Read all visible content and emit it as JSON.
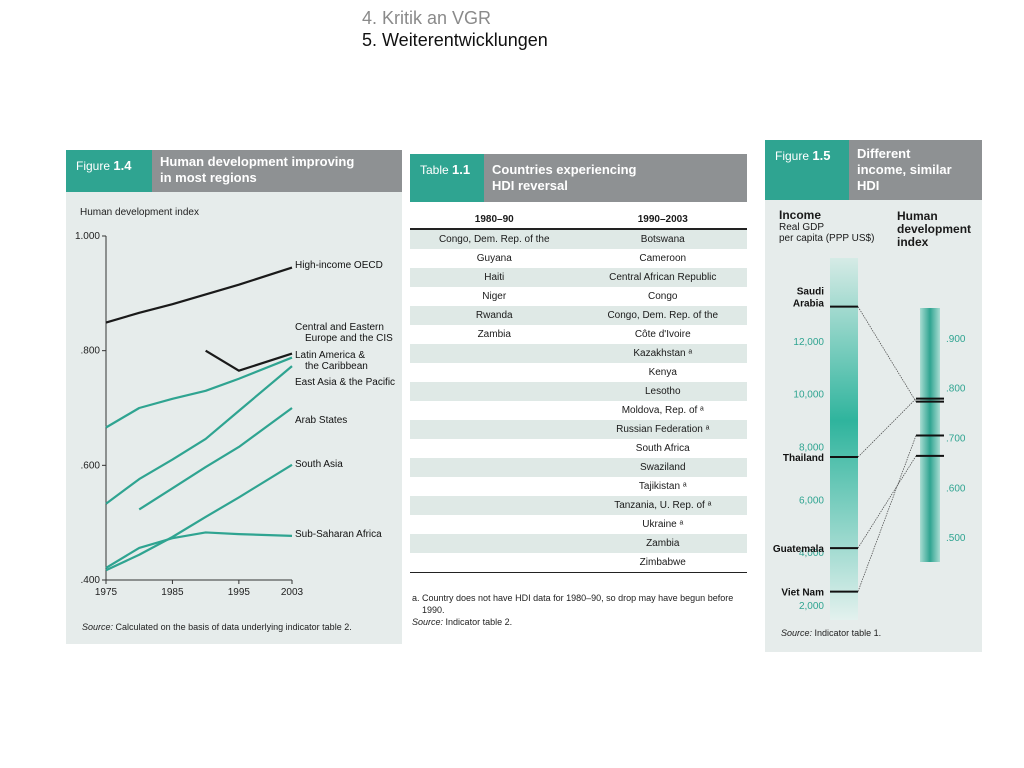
{
  "nav": {
    "item_4": "4. Kritik an VGR",
    "item_5": "5. Weiterentwicklungen"
  },
  "colors": {
    "teal": "#2fa491",
    "header_gray": "#8e9193",
    "panel_bg": "#e6eceb",
    "line_black": "#1a1a1a"
  },
  "figure14": {
    "fig_prefix": "Figure",
    "fig_num": "1.4",
    "title_line1": "Human development improving",
    "title_line2": "in most regions",
    "ylabel": "Human development index",
    "source_label": "Source:",
    "source_text": "Calculated on the basis of data underlying indicator table 2."
  },
  "table11": {
    "tab_prefix": "Table",
    "tab_num": "1.1",
    "title_line1": "Countries experiencing",
    "title_line2": "HDI reversal",
    "col1": "1980–90",
    "col2": "1990–2003",
    "rows": [
      [
        "Congo, Dem. Rep. of the",
        "Botswana"
      ],
      [
        "Guyana",
        "Cameroon"
      ],
      [
        "Haiti",
        "Central African Republic"
      ],
      [
        "Niger",
        "Congo"
      ],
      [
        "Rwanda",
        "Congo, Dem. Rep. of the"
      ],
      [
        "Zambia",
        "Côte d'Ivoire"
      ],
      [
        "",
        "Kazakhstan ᵃ"
      ],
      [
        "",
        "Kenya"
      ],
      [
        "",
        "Lesotho"
      ],
      [
        "",
        "Moldova, Rep. of ᵃ"
      ],
      [
        "",
        "Russian Federation ᵃ"
      ],
      [
        "",
        "South Africa"
      ],
      [
        "",
        "Swaziland"
      ],
      [
        "",
        "Tajikistan ᵃ"
      ],
      [
        "",
        "Tanzania, U. Rep. of ᵃ"
      ],
      [
        "",
        "Ukraine ᵃ"
      ],
      [
        "",
        "Zambia"
      ],
      [
        "",
        "Zimbabwe"
      ]
    ],
    "footnote_line1": "a. Country does not have HDI data for 1980–90, so drop may have begun before",
    "footnote_line2": "1990.",
    "source_label": "Source:",
    "source_text": "Indicator table 2."
  },
  "figure15": {
    "fig_prefix": "Figure",
    "fig_num": "1.5",
    "title_line1": "Different",
    "title_line2": "income, similar",
    "title_line3": "HDI",
    "income_title": "Income",
    "income_sub1": "Real GDP",
    "income_sub2": "per capita (PPP US$)",
    "hdi_title1": "Human",
    "hdi_title2": "development",
    "hdi_title3": "index",
    "source_label": "Source:",
    "source_text": "Indicator table 1."
  },
  "chart_data": [
    {
      "type": "line",
      "title": "Human development improving in most regions",
      "ylabel": "Human development index",
      "x": [
        1975,
        1980,
        1985,
        1990,
        1995,
        2003
      ],
      "x_ticks": [
        "1975",
        "1985",
        "1995",
        "2003"
      ],
      "y_ticks": [
        "1.000",
        ".800",
        ".600",
        ".400"
      ],
      "ylim": [
        0.4,
        1.0
      ],
      "xlim": [
        1975,
        2003
      ],
      "series": [
        {
          "name": "High-income OECD",
          "color": "#1a1a1a",
          "x": [
            1975,
            1980,
            1985,
            1990,
            1995,
            2003
          ],
          "values": [
            0.849,
            0.866,
            0.881,
            0.898,
            0.915,
            0.945
          ]
        },
        {
          "name": "Central and Eastern Europe and the CIS",
          "color": "#1a1a1a",
          "x": [
            1990,
            1995,
            2003
          ],
          "values": [
            0.8,
            0.765,
            0.795
          ]
        },
        {
          "name": "Latin America & the Caribbean",
          "color": "#2fa491",
          "x": [
            1975,
            1980,
            1985,
            1990,
            1995,
            2003
          ],
          "values": [
            0.666,
            0.7,
            0.716,
            0.73,
            0.751,
            0.788
          ]
        },
        {
          "name": "East Asia & the Pacific",
          "color": "#2fa491",
          "x": [
            1975,
            1980,
            1985,
            1990,
            1995,
            2003
          ],
          "values": [
            0.533,
            0.576,
            0.61,
            0.646,
            0.695,
            0.773
          ]
        },
        {
          "name": "Arab States",
          "color": "#2fa491",
          "x": [
            1980,
            1985,
            1990,
            1995,
            2003
          ],
          "values": [
            0.523,
            0.56,
            0.597,
            0.632,
            0.7
          ]
        },
        {
          "name": "South Asia",
          "color": "#2fa491",
          "x": [
            1975,
            1980,
            1985,
            1990,
            1995,
            2003
          ],
          "values": [
            0.417,
            0.444,
            0.475,
            0.51,
            0.544,
            0.601
          ]
        },
        {
          "name": "Sub-Saharan Africa",
          "color": "#2fa491",
          "x": [
            1975,
            1980,
            1985,
            1990,
            1995,
            2003
          ],
          "values": [
            0.421,
            0.456,
            0.473,
            0.483,
            0.48,
            0.477
          ]
        }
      ],
      "series_labels": [
        {
          "text1": "High-income OECD",
          "text2": ""
        },
        {
          "text1": "Central and Eastern",
          "text2": "Europe and the CIS"
        },
        {
          "text1": "Latin America &",
          "text2": "the Caribbean"
        },
        {
          "text1": "East Asia & the Pacific",
          "text2": ""
        },
        {
          "text1": "Arab States",
          "text2": ""
        },
        {
          "text1": "South Asia",
          "text2": ""
        },
        {
          "text1": "Sub-Saharan Africa",
          "text2": ""
        }
      ]
    },
    {
      "type": "line",
      "title": "Different income, similar HDI",
      "income_ticks": [
        "12,000",
        "10,000",
        "8,000",
        "6,000",
        "4,000",
        "2,000"
      ],
      "income_tick_values": [
        12000,
        10000,
        8000,
        6000,
        4000,
        2000
      ],
      "hdi_ticks": [
        ".900",
        ".800",
        ".700",
        ".600",
        ".500"
      ],
      "hdi_tick_values": [
        0.9,
        0.8,
        0.7,
        0.6,
        0.5
      ],
      "income_range": [
        1500,
        14500
      ],
      "hdi_range": [
        0.45,
        0.96
      ],
      "countries": [
        {
          "name1": "Saudi",
          "name2": "Arabia",
          "income": 13300,
          "hdi": 0.772
        },
        {
          "name1": "Thailand",
          "name2": "",
          "income": 7600,
          "hdi": 0.778
        },
        {
          "name1": "Guatemala",
          "name2": "",
          "income": 4150,
          "hdi": 0.663
        },
        {
          "name1": "Viet Nam",
          "name2": "",
          "income": 2500,
          "hdi": 0.704
        }
      ]
    }
  ]
}
